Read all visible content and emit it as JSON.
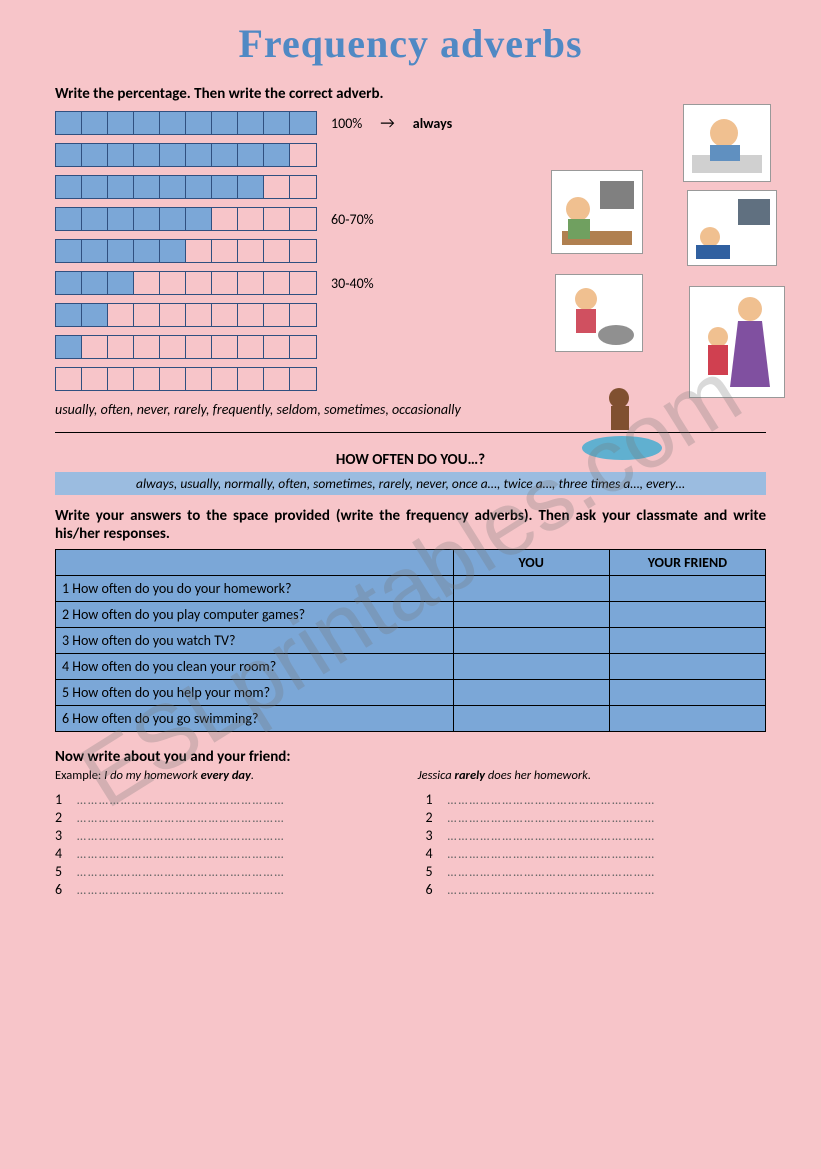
{
  "title": "Frequency adverbs",
  "section1": {
    "instruction": "Write the percentage. Then write the correct adverb.",
    "bars": [
      {
        "filled": 10,
        "label_pct": "100%",
        "label_adverb": "always",
        "show_arrow": true
      },
      {
        "filled": 9,
        "label_pct": "",
        "label_adverb": "",
        "show_arrow": false
      },
      {
        "filled": 8,
        "label_pct": "",
        "label_adverb": "",
        "show_arrow": false
      },
      {
        "filled": 6,
        "label_pct": "60-70%",
        "label_adverb": "",
        "show_arrow": false
      },
      {
        "filled": 5,
        "label_pct": "",
        "label_adverb": "",
        "show_arrow": false
      },
      {
        "filled": 3,
        "label_pct": "30-40%",
        "label_adverb": "",
        "show_arrow": false
      },
      {
        "filled": 2,
        "label_pct": "",
        "label_adverb": "",
        "show_arrow": false
      },
      {
        "filled": 1,
        "label_pct": "",
        "label_adverb": "",
        "show_arrow": false
      },
      {
        "filled": 0,
        "label_pct": "",
        "label_adverb": "",
        "show_arrow": false
      }
    ],
    "word_bank": "usually, often, never, rarely, frequently, seldom, sometimes, occasionally"
  },
  "section2": {
    "heading": "HOW OFTEN DO YOU…?",
    "adverb_strip": "always, usually, normally, often, sometimes, rarely, never, once a…, twice a…, three times a…, every…",
    "instruction": "Write your answers to the space provided (write the frequency adverbs). Then ask your classmate and write his/her responses.",
    "columns": [
      "",
      "YOU",
      "YOUR FRIEND"
    ],
    "questions": [
      "1 How often do you do your homework?",
      "2 How often do you play computer games?",
      "3 How often do you watch TV?",
      "4 How often do you clean your room?",
      "5 How often do you help your mom?",
      "6 How often do you go swimming?"
    ]
  },
  "section3": {
    "heading": "Now write about you and your friend:",
    "example_label": "Example:",
    "example_left": "I do my homework every day.",
    "example_right": "Jessica rarely does her homework.",
    "line_numbers": [
      "1",
      "2",
      "3",
      "4",
      "5",
      "6"
    ]
  },
  "watermark": "ESLprintables.com",
  "colors": {
    "page_bg": "#f7c5c9",
    "bar_fill": "#7ba7d7",
    "bar_border": "#305080",
    "strip_bg": "#9bbce0",
    "title_color": "#5089c4"
  }
}
